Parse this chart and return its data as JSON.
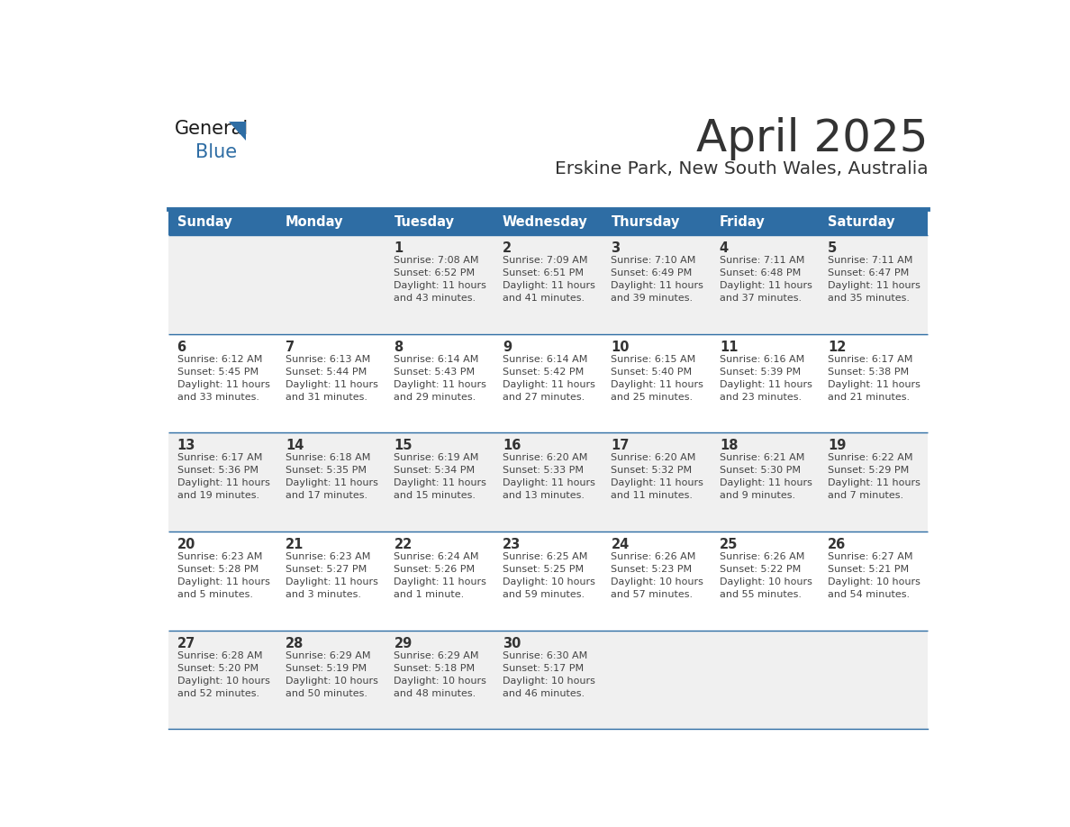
{
  "title": "April 2025",
  "subtitle": "Erskine Park, New South Wales, Australia",
  "days_of_week": [
    "Sunday",
    "Monday",
    "Tuesday",
    "Wednesday",
    "Thursday",
    "Friday",
    "Saturday"
  ],
  "header_bg": "#2E6DA4",
  "header_text": "#FFFFFF",
  "cell_bg_light": "#F0F0F0",
  "cell_bg_white": "#FFFFFF",
  "cell_text": "#444444",
  "day_num_color": "#333333",
  "border_color": "#2E6DA4",
  "title_color": "#333333",
  "subtitle_color": "#333333",
  "weeks": [
    [
      {
        "day": 0,
        "info": ""
      },
      {
        "day": 0,
        "info": ""
      },
      {
        "day": 1,
        "info": "Sunrise: 7:08 AM\nSunset: 6:52 PM\nDaylight: 11 hours\nand 43 minutes."
      },
      {
        "day": 2,
        "info": "Sunrise: 7:09 AM\nSunset: 6:51 PM\nDaylight: 11 hours\nand 41 minutes."
      },
      {
        "day": 3,
        "info": "Sunrise: 7:10 AM\nSunset: 6:49 PM\nDaylight: 11 hours\nand 39 minutes."
      },
      {
        "day": 4,
        "info": "Sunrise: 7:11 AM\nSunset: 6:48 PM\nDaylight: 11 hours\nand 37 minutes."
      },
      {
        "day": 5,
        "info": "Sunrise: 7:11 AM\nSunset: 6:47 PM\nDaylight: 11 hours\nand 35 minutes."
      }
    ],
    [
      {
        "day": 6,
        "info": "Sunrise: 6:12 AM\nSunset: 5:45 PM\nDaylight: 11 hours\nand 33 minutes."
      },
      {
        "day": 7,
        "info": "Sunrise: 6:13 AM\nSunset: 5:44 PM\nDaylight: 11 hours\nand 31 minutes."
      },
      {
        "day": 8,
        "info": "Sunrise: 6:14 AM\nSunset: 5:43 PM\nDaylight: 11 hours\nand 29 minutes."
      },
      {
        "day": 9,
        "info": "Sunrise: 6:14 AM\nSunset: 5:42 PM\nDaylight: 11 hours\nand 27 minutes."
      },
      {
        "day": 10,
        "info": "Sunrise: 6:15 AM\nSunset: 5:40 PM\nDaylight: 11 hours\nand 25 minutes."
      },
      {
        "day": 11,
        "info": "Sunrise: 6:16 AM\nSunset: 5:39 PM\nDaylight: 11 hours\nand 23 minutes."
      },
      {
        "day": 12,
        "info": "Sunrise: 6:17 AM\nSunset: 5:38 PM\nDaylight: 11 hours\nand 21 minutes."
      }
    ],
    [
      {
        "day": 13,
        "info": "Sunrise: 6:17 AM\nSunset: 5:36 PM\nDaylight: 11 hours\nand 19 minutes."
      },
      {
        "day": 14,
        "info": "Sunrise: 6:18 AM\nSunset: 5:35 PM\nDaylight: 11 hours\nand 17 minutes."
      },
      {
        "day": 15,
        "info": "Sunrise: 6:19 AM\nSunset: 5:34 PM\nDaylight: 11 hours\nand 15 minutes."
      },
      {
        "day": 16,
        "info": "Sunrise: 6:20 AM\nSunset: 5:33 PM\nDaylight: 11 hours\nand 13 minutes."
      },
      {
        "day": 17,
        "info": "Sunrise: 6:20 AM\nSunset: 5:32 PM\nDaylight: 11 hours\nand 11 minutes."
      },
      {
        "day": 18,
        "info": "Sunrise: 6:21 AM\nSunset: 5:30 PM\nDaylight: 11 hours\nand 9 minutes."
      },
      {
        "day": 19,
        "info": "Sunrise: 6:22 AM\nSunset: 5:29 PM\nDaylight: 11 hours\nand 7 minutes."
      }
    ],
    [
      {
        "day": 20,
        "info": "Sunrise: 6:23 AM\nSunset: 5:28 PM\nDaylight: 11 hours\nand 5 minutes."
      },
      {
        "day": 21,
        "info": "Sunrise: 6:23 AM\nSunset: 5:27 PM\nDaylight: 11 hours\nand 3 minutes."
      },
      {
        "day": 22,
        "info": "Sunrise: 6:24 AM\nSunset: 5:26 PM\nDaylight: 11 hours\nand 1 minute."
      },
      {
        "day": 23,
        "info": "Sunrise: 6:25 AM\nSunset: 5:25 PM\nDaylight: 10 hours\nand 59 minutes."
      },
      {
        "day": 24,
        "info": "Sunrise: 6:26 AM\nSunset: 5:23 PM\nDaylight: 10 hours\nand 57 minutes."
      },
      {
        "day": 25,
        "info": "Sunrise: 6:26 AM\nSunset: 5:22 PM\nDaylight: 10 hours\nand 55 minutes."
      },
      {
        "day": 26,
        "info": "Sunrise: 6:27 AM\nSunset: 5:21 PM\nDaylight: 10 hours\nand 54 minutes."
      }
    ],
    [
      {
        "day": 27,
        "info": "Sunrise: 6:28 AM\nSunset: 5:20 PM\nDaylight: 10 hours\nand 52 minutes."
      },
      {
        "day": 28,
        "info": "Sunrise: 6:29 AM\nSunset: 5:19 PM\nDaylight: 10 hours\nand 50 minutes."
      },
      {
        "day": 29,
        "info": "Sunrise: 6:29 AM\nSunset: 5:18 PM\nDaylight: 10 hours\nand 48 minutes."
      },
      {
        "day": 30,
        "info": "Sunrise: 6:30 AM\nSunset: 5:17 PM\nDaylight: 10 hours\nand 46 minutes."
      },
      {
        "day": 0,
        "info": ""
      },
      {
        "day": 0,
        "info": ""
      },
      {
        "day": 0,
        "info": ""
      }
    ]
  ]
}
